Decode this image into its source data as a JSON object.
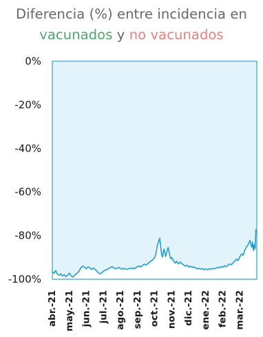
{
  "title": {
    "line1": "Diferencia (%) entre incidencia en",
    "vaccinated": "vacunados",
    "connector": " y ",
    "unvaccinated": "no vacunados"
  },
  "colors": {
    "title_gray": "#666666",
    "vaccinated_green": "#4aa86a",
    "unvaccinated_red": "#f27b7b",
    "line": "#1aa0d8",
    "area_fill": "#e2f3fb",
    "plot_border": "#2aa2d8"
  },
  "chart_data": {
    "type": "area",
    "title": "Diferencia (%) entre incidencia en vacunados y no vacunados",
    "ylim": [
      -100,
      0
    ],
    "y_ticks": [
      {
        "value": 0,
        "label": "0%"
      },
      {
        "value": -20,
        "label": "-20%"
      },
      {
        "value": -40,
        "label": "-40%"
      },
      {
        "value": -60,
        "label": "-60%"
      },
      {
        "value": -80,
        "label": "-80%"
      },
      {
        "value": -100,
        "label": "-100%"
      }
    ],
    "x_ticks": [
      {
        "index": 0,
        "label": "abr.-21"
      },
      {
        "index": 1,
        "label": "may.-21"
      },
      {
        "index": 2,
        "label": "jun.-21"
      },
      {
        "index": 3,
        "label": "jul.-21"
      },
      {
        "index": 4,
        "label": "ago.-21"
      },
      {
        "index": 5,
        "label": "sep.-21"
      },
      {
        "index": 6,
        "label": "oct.-21"
      },
      {
        "index": 7,
        "label": "nov.-21"
      },
      {
        "index": 8,
        "label": "dic.-21"
      },
      {
        "index": 9,
        "label": "ene.-22"
      },
      {
        "index": 10,
        "label": "feb.-22"
      },
      {
        "index": 11,
        "label": "mar.-22"
      }
    ],
    "xlim": [
      0,
      12
    ],
    "grid": false,
    "series": [
      {
        "x": [
          0.0,
          0.1,
          0.2,
          0.3,
          0.4,
          0.5,
          0.6,
          0.7,
          0.8,
          0.9,
          1.0,
          1.1,
          1.2,
          1.3,
          1.4,
          1.5,
          1.6,
          1.7,
          1.8,
          1.9,
          2.0,
          2.1,
          2.2,
          2.3,
          2.4,
          2.5,
          2.6,
          2.7,
          2.8,
          2.9,
          3.0,
          3.1,
          3.2,
          3.3,
          3.4,
          3.5,
          3.6,
          3.7,
          3.8,
          3.9,
          4.0,
          4.1,
          4.2,
          4.3,
          4.4,
          4.5,
          4.6,
          4.7,
          4.8,
          4.9,
          5.0,
          5.1,
          5.2,
          5.3,
          5.4,
          5.5,
          5.6,
          5.7,
          5.8,
          5.9,
          6.0,
          6.05,
          6.1,
          6.15,
          6.2,
          6.25,
          6.3,
          6.35,
          6.4,
          6.45,
          6.5,
          6.55,
          6.6,
          6.65,
          6.7,
          6.75,
          6.8,
          6.85,
          6.9,
          6.95,
          7.0,
          7.1,
          7.2,
          7.3,
          7.4,
          7.5,
          7.6,
          7.7,
          7.8,
          7.9,
          8.0,
          8.1,
          8.2,
          8.3,
          8.4,
          8.5,
          8.6,
          8.7,
          8.8,
          8.9,
          9.0,
          9.1,
          9.2,
          9.3,
          9.4,
          9.5,
          9.6,
          9.7,
          9.8,
          9.9,
          10.0,
          10.1,
          10.2,
          10.3,
          10.4,
          10.5,
          10.6,
          10.7,
          10.8,
          10.9,
          11.0,
          11.1,
          11.2,
          11.3,
          11.4,
          11.5,
          11.6,
          11.7,
          11.75,
          11.8,
          11.85,
          11.9,
          11.95
        ],
        "values": [
          -96.5,
          -97.3,
          -96.0,
          -97.8,
          -98.2,
          -97.5,
          -98.6,
          -97.9,
          -98.8,
          -98.1,
          -97.2,
          -98.4,
          -99.0,
          -98.3,
          -97.5,
          -97.0,
          -95.8,
          -94.5,
          -94.0,
          -94.6,
          -95.2,
          -94.3,
          -94.8,
          -95.5,
          -94.9,
          -95.4,
          -96.2,
          -97.0,
          -97.6,
          -97.1,
          -96.3,
          -95.9,
          -95.6,
          -95.1,
          -94.8,
          -94.2,
          -94.7,
          -95.2,
          -95.0,
          -94.6,
          -95.1,
          -95.4,
          -95.0,
          -95.3,
          -95.5,
          -95.0,
          -95.2,
          -94.8,
          -95.3,
          -94.7,
          -94.2,
          -93.9,
          -94.4,
          -93.6,
          -93.1,
          -93.5,
          -92.9,
          -92.2,
          -91.6,
          -91.0,
          -90.2,
          -89.0,
          -87.5,
          -85.0,
          -83.6,
          -82.5,
          -81.2,
          -84.5,
          -87.8,
          -89.9,
          -88.5,
          -86.2,
          -87.8,
          -89.6,
          -88.1,
          -86.6,
          -85.4,
          -87.4,
          -89.4,
          -90.6,
          -90.0,
          -91.4,
          -92.6,
          -91.8,
          -93.0,
          -92.1,
          -92.8,
          -93.4,
          -94.0,
          -93.6,
          -94.4,
          -94.0,
          -94.6,
          -94.3,
          -94.8,
          -95.2,
          -95.0,
          -95.4,
          -95.1,
          -95.6,
          -95.3,
          -95.6,
          -95.2,
          -95.5,
          -95.0,
          -95.3,
          -94.9,
          -94.6,
          -94.8,
          -94.2,
          -94.5,
          -93.8,
          -94.3,
          -93.6,
          -93.0,
          -93.4,
          -92.5,
          -91.8,
          -90.8,
          -91.4,
          -89.8,
          -88.4,
          -89.0,
          -86.6,
          -85.2,
          -84.0,
          -82.2,
          -85.4,
          -83.0,
          -86.8,
          -84.2,
          -86.0,
          -77.0
        ]
      }
    ]
  }
}
